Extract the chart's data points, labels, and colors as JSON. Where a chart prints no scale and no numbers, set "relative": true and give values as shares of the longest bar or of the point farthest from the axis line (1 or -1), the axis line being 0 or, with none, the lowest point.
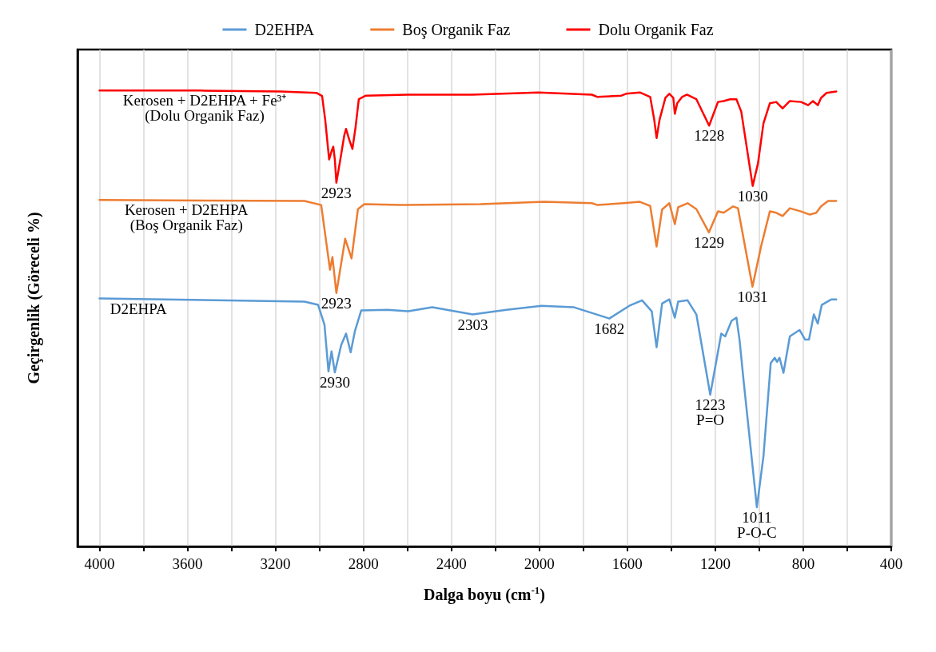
{
  "chart_data": {
    "type": "line",
    "relative": true,
    "xlabel": "Dalga boyu (cm$^{-1}$)",
    "ylabel": "Geçirgenlik (Göreceli %)",
    "xlim": [
      4100,
      400
    ],
    "xticks": [
      4000,
      {
        "value": 3800,
        "label": null
      },
      3600,
      {
        "value": 3400,
        "label": null
      },
      3200,
      {
        "value": 3000,
        "label": null
      },
      2800,
      {
        "value": 2600,
        "label": null
      },
      2400,
      {
        "value": 2200,
        "label": null
      },
      2000,
      {
        "value": 1800,
        "label": null
      },
      1600,
      {
        "value": 1400,
        "label": null
      },
      1200,
      {
        "value": 1000,
        "label": null
      },
      800,
      {
        "value": 600,
        "label": null
      },
      400
    ],
    "grid": "x",
    "legend": "top",
    "marker": "none",
    "line_style": "solid",
    "series": [
      {
        "name": "D2EHPA",
        "color": "#5b9bd5",
        "x": [
          4000,
          3068,
          3006,
          2977,
          2959,
          2945,
          2930,
          2901,
          2879,
          2858,
          2839,
          2810,
          2690,
          2596,
          2487,
          2303,
          2150,
          1990,
          1845,
          1682,
          1591,
          1533,
          1489,
          1467,
          1442,
          1409,
          1384,
          1369,
          1326,
          1286,
          1223,
          1173,
          1155,
          1126,
          1104,
          1090,
          1072,
          1011,
          981,
          948,
          930,
          919,
          908,
          890,
          861,
          817,
          792,
          774,
          752,
          734,
          716,
          672,
          650
        ],
        "values": [
          0.544,
          0.537,
          0.53,
          0.486,
          0.384,
          0.428,
          0.382,
          0.442,
          0.467,
          0.426,
          0.472,
          0.518,
          0.519,
          0.516,
          0.525,
          0.509,
          0.519,
          0.528,
          0.525,
          0.5,
          0.528,
          0.54,
          0.516,
          0.437,
          0.533,
          0.542,
          0.502,
          0.537,
          0.54,
          0.509,
          0.333,
          0.467,
          0.461,
          0.495,
          0.502,
          0.454,
          0.367,
          0.086,
          0.198,
          0.402,
          0.414,
          0.405,
          0.414,
          0.381,
          0.461,
          0.475,
          0.454,
          0.454,
          0.509,
          0.489,
          0.53,
          0.542,
          0.542
        ]
      },
      {
        "name": "Boş Organik Faz",
        "color": "#ed7d31",
        "x": [
          4000,
          3068,
          2992,
          2952,
          2941,
          2923,
          2883,
          2854,
          2825,
          2796,
          2632,
          2269,
          1979,
          1761,
          1736,
          1616,
          1543,
          1496,
          1467,
          1442,
          1409,
          1384,
          1369,
          1326,
          1286,
          1229,
          1188,
          1162,
          1119,
          1097,
          1031,
          992,
          952,
          923,
          894,
          861,
          810,
          770,
          741,
          719,
          687,
          650
        ],
        "values": [
          0.76,
          0.758,
          0.749,
          0.607,
          0.635,
          0.556,
          0.675,
          0.632,
          0.74,
          0.751,
          0.749,
          0.751,
          0.756,
          0.753,
          0.749,
          0.753,
          0.756,
          0.747,
          0.658,
          0.739,
          0.753,
          0.707,
          0.744,
          0.753,
          0.74,
          0.689,
          0.735,
          0.732,
          0.746,
          0.742,
          0.57,
          0.658,
          0.735,
          0.732,
          0.725,
          0.742,
          0.735,
          0.728,
          0.732,
          0.746,
          0.758,
          0.758
        ]
      },
      {
        "name": "Dolu Organik Faz",
        "color": "#ff0000",
        "x": [
          4000,
          3540,
          3177,
          3014,
          2988,
          2974,
          2956,
          2945,
          2937,
          2930,
          2923,
          2905,
          2887,
          2879,
          2865,
          2850,
          2836,
          2821,
          2789,
          2589,
          2306,
          2004,
          1761,
          1736,
          1627,
          1605,
          1543,
          1496,
          1478,
          1467,
          1453,
          1427,
          1409,
          1391,
          1384,
          1373,
          1351,
          1329,
          1286,
          1228,
          1188,
          1162,
          1133,
          1104,
          1082,
          1030,
          1006,
          981,
          952,
          923,
          894,
          861,
          810,
          778,
          756,
          734,
          719,
          694,
          650
        ],
        "values": [
          1.0,
          1.0,
          0.998,
          0.995,
          0.988,
          0.937,
          0.849,
          0.867,
          0.877,
          0.849,
          0.798,
          0.849,
          0.902,
          0.916,
          0.893,
          0.872,
          0.919,
          0.981,
          0.989,
          0.991,
          0.991,
          0.996,
          0.991,
          0.986,
          0.989,
          0.993,
          0.996,
          0.986,
          0.937,
          0.896,
          0.937,
          0.984,
          0.993,
          0.984,
          0.949,
          0.972,
          0.986,
          0.991,
          0.981,
          0.923,
          0.975,
          0.977,
          0.981,
          0.981,
          0.954,
          0.791,
          0.84,
          0.928,
          0.972,
          0.975,
          0.961,
          0.977,
          0.975,
          0.968,
          0.977,
          0.968,
          0.984,
          0.995,
          0.998
        ]
      }
    ],
    "annotations": [
      {
        "text": "Kerosen + D2EHPA + Fe³⁺\n(Dolu Organik Faz)",
        "x": 3522,
        "y": 1.0
      },
      {
        "text": "Kerosen + D2EHPA\n(Boş Organik Faz)",
        "x": 3605,
        "y": 0.76
      },
      {
        "text": "D2EHPA",
        "x": 3823,
        "y": 0.544
      },
      {
        "text": "2923",
        "x": 2923,
        "y": 0.798
      },
      {
        "text": "1228",
        "x": 1228,
        "y": 0.923
      },
      {
        "text": "1030",
        "x": 1030,
        "y": 0.791
      },
      {
        "text": "2923",
        "x": 2923,
        "y": 0.556
      },
      {
        "text": "1229",
        "x": 1229,
        "y": 0.689
      },
      {
        "text": "1031",
        "x": 1031,
        "y": 0.57
      },
      {
        "text": "2930",
        "x": 2930,
        "y": 0.382
      },
      {
        "text": "2303",
        "x": 2303,
        "y": 0.509
      },
      {
        "text": "1682",
        "x": 1682,
        "y": 0.5
      },
      {
        "text": "1223",
        "x": 1223,
        "y": 0.333
      },
      {
        "text": "P=O",
        "x": 1223,
        "y": 0.333
      },
      {
        "text": "1011",
        "x": 1011,
        "y": 0.086
      },
      {
        "text": "P-O-C",
        "x": 1011,
        "y": 0.086
      }
    ]
  }
}
